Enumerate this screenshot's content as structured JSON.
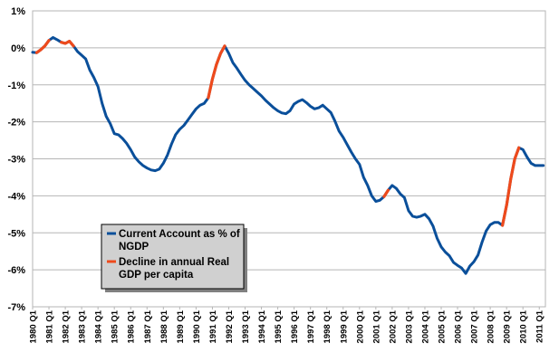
{
  "chart_data": {
    "type": "line",
    "title": "",
    "xlabel": "",
    "ylabel": "",
    "ylim": [
      -7,
      1
    ],
    "grid": true,
    "y_ticks": [
      "1%",
      "0%",
      "-1%",
      "-2%",
      "-3%",
      "-4%",
      "-5%",
      "-6%",
      "-7%"
    ],
    "x_ticks": [
      "1980 Q1",
      "1981 Q1",
      "1982 Q1",
      "1983 Q1",
      "1984 Q1",
      "1985 Q1",
      "1986 Q1",
      "1987 Q1",
      "1988 Q1",
      "1989 Q1",
      "1990 Q1",
      "1991 Q1",
      "1992 Q1",
      "1993 Q1",
      "1994 Q1",
      "1995 Q1",
      "1996 Q1",
      "1997 Q1",
      "1998 Q1",
      "1999 Q1",
      "2000 Q1",
      "2001 Q1",
      "2002 Q1",
      "2003 Q1",
      "2004 Q1",
      "2005 Q1",
      "2006 Q1",
      "2007 Q1",
      "2008 Q1",
      "2009 Q1",
      "2010 Q1",
      "2011 Q1"
    ],
    "legend_position": "lower-left",
    "series": [
      {
        "name": "Current Account as % of NGDP",
        "color": "#0a4f9a",
        "x": [
          1980.0,
          1980.25,
          1980.5,
          1980.75,
          1981.0,
          1981.25,
          1981.5,
          1981.75,
          1982.0,
          1982.25,
          1982.5,
          1982.75,
          1983.0,
          1983.25,
          1983.5,
          1983.75,
          1984.0,
          1984.25,
          1984.5,
          1984.75,
          1985.0,
          1985.25,
          1985.5,
          1985.75,
          1986.0,
          1986.25,
          1986.5,
          1986.75,
          1987.0,
          1987.25,
          1987.5,
          1987.75,
          1988.0,
          1988.25,
          1988.5,
          1988.75,
          1989.0,
          1989.25,
          1989.5,
          1989.75,
          1990.0,
          1990.25,
          1990.5,
          1990.75,
          1991.0,
          1991.25,
          1991.5,
          1991.75,
          1992.0,
          1992.25,
          1992.5,
          1992.75,
          1993.0,
          1993.25,
          1993.5,
          1993.75,
          1994.0,
          1994.25,
          1994.5,
          1994.75,
          1995.0,
          1995.25,
          1995.5,
          1995.75,
          1996.0,
          1996.25,
          1996.5,
          1996.75,
          1997.0,
          1997.25,
          1997.5,
          1997.75,
          1998.0,
          1998.25,
          1998.5,
          1998.75,
          1999.0,
          1999.25,
          1999.5,
          1999.75,
          2000.0,
          2000.25,
          2000.5,
          2000.75,
          2001.0,
          2001.25,
          2001.5,
          2001.75,
          2002.0,
          2002.25,
          2002.5,
          2002.75,
          2003.0,
          2003.25,
          2003.5,
          2003.75,
          2004.0,
          2004.25,
          2004.5,
          2004.75,
          2005.0,
          2005.25,
          2005.5,
          2005.75,
          2006.0,
          2006.25,
          2006.5,
          2006.75,
          2007.0,
          2007.25,
          2007.5,
          2007.75,
          2008.0,
          2008.25,
          2008.5,
          2008.75,
          2009.0,
          2009.25,
          2009.5,
          2009.75,
          2010.0,
          2010.25,
          2010.5,
          2010.75,
          2011.0,
          2011.25
        ],
        "values": [
          -0.12,
          -0.13,
          -0.05,
          0.05,
          0.2,
          0.28,
          0.22,
          0.15,
          0.12,
          0.18,
          0.05,
          -0.1,
          -0.2,
          -0.3,
          -0.6,
          -0.8,
          -1.05,
          -1.5,
          -1.85,
          -2.05,
          -2.32,
          -2.35,
          -2.45,
          -2.58,
          -2.75,
          -2.95,
          -3.08,
          -3.18,
          -3.25,
          -3.3,
          -3.32,
          -3.28,
          -3.12,
          -2.9,
          -2.6,
          -2.35,
          -2.2,
          -2.1,
          -1.95,
          -1.8,
          -1.65,
          -1.55,
          -1.5,
          -1.35,
          -0.85,
          -0.45,
          -0.15,
          0.05,
          -0.15,
          -0.4,
          -0.55,
          -0.72,
          -0.88,
          -1.0,
          -1.1,
          -1.2,
          -1.3,
          -1.42,
          -1.52,
          -1.62,
          -1.7,
          -1.76,
          -1.78,
          -1.7,
          -1.52,
          -1.45,
          -1.4,
          -1.48,
          -1.58,
          -1.65,
          -1.62,
          -1.55,
          -1.65,
          -1.75,
          -1.98,
          -2.25,
          -2.42,
          -2.62,
          -2.82,
          -3.0,
          -3.15,
          -3.5,
          -3.72,
          -4.0,
          -4.15,
          -4.12,
          -4.02,
          -3.85,
          -3.72,
          -3.8,
          -3.95,
          -4.05,
          -4.4,
          -4.55,
          -4.58,
          -4.55,
          -4.5,
          -4.62,
          -4.82,
          -5.15,
          -5.38,
          -5.52,
          -5.62,
          -5.8,
          -5.88,
          -5.95,
          -6.1,
          -5.9,
          -5.78,
          -5.6,
          -5.25,
          -4.95,
          -4.78,
          -4.72,
          -4.72,
          -4.8,
          -4.25,
          -3.55,
          -3.0,
          -2.7,
          -2.75,
          -2.95,
          -3.12,
          -3.18,
          -3.18,
          -3.18
        ]
      },
      {
        "name": "Decline in annual Real GDP per capita",
        "color": "#ee4a1c",
        "segments": [
          {
            "x": [
              1980.25,
              1980.5,
              1980.75,
              1981.0
            ],
            "values": [
              -0.13,
              -0.05,
              0.05,
              0.2
            ]
          },
          {
            "x": [
              1981.75,
              1982.0,
              1982.25,
              1982.5
            ],
            "values": [
              0.15,
              0.12,
              0.18,
              0.05
            ]
          },
          {
            "x": [
              1990.75,
              1991.0,
              1991.25,
              1991.5,
              1991.75
            ],
            "values": [
              -1.35,
              -0.85,
              -0.45,
              -0.15,
              0.05
            ]
          },
          {
            "x": [
              2001.5,
              2001.75
            ],
            "values": [
              -4.02,
              -3.85
            ]
          },
          {
            "x": [
              2008.75,
              2009.0,
              2009.25,
              2009.5,
              2009.75
            ],
            "values": [
              -4.8,
              -4.25,
              -3.55,
              -3.0,
              -2.7
            ]
          }
        ]
      }
    ]
  },
  "legend": {
    "items": [
      {
        "line1": "Current Account as % of",
        "line2": "NGDP",
        "color": "#0a4f9a"
      },
      {
        "line1": "Decline in annual Real",
        "line2": "GDP per capita",
        "color": "#ee4a1c"
      }
    ]
  }
}
